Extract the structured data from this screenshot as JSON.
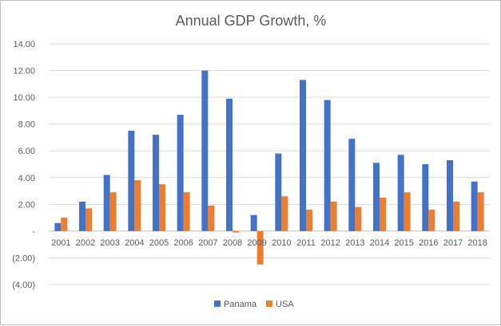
{
  "chart_data": {
    "type": "bar",
    "title": "Annual GDP Growth, %",
    "categories": [
      "2001",
      "2002",
      "2003",
      "2004",
      "2005",
      "2006",
      "2007",
      "2008",
      "2009",
      "2010",
      "2011",
      "2012",
      "2013",
      "2014",
      "2015",
      "2016",
      "2017",
      "2018"
    ],
    "series": [
      {
        "name": "Panama",
        "color": "#4472c4",
        "values": [
          0.6,
          2.2,
          4.2,
          7.5,
          7.2,
          8.7,
          12.0,
          9.9,
          1.2,
          5.8,
          11.3,
          9.8,
          6.9,
          5.1,
          5.7,
          5.0,
          5.3,
          3.7
        ]
      },
      {
        "name": "USA",
        "color": "#ed7d31",
        "values": [
          1.0,
          1.7,
          2.9,
          3.8,
          3.5,
          2.9,
          1.9,
          -0.1,
          -2.5,
          2.6,
          1.6,
          2.2,
          1.8,
          2.5,
          2.9,
          1.6,
          2.2,
          2.9
        ]
      }
    ],
    "ylim": [
      -4,
      14
    ],
    "yticks": [
      14,
      12,
      10,
      8,
      6,
      4,
      2,
      0,
      -2,
      -4
    ],
    "ytick_labels": [
      "14.00",
      "12.00",
      "10.00",
      "8.00",
      "6.00",
      "4.00",
      "2.00",
      "-",
      "(2.00)",
      "(4.00)"
    ],
    "grid": true,
    "legend_position": "bottom"
  }
}
